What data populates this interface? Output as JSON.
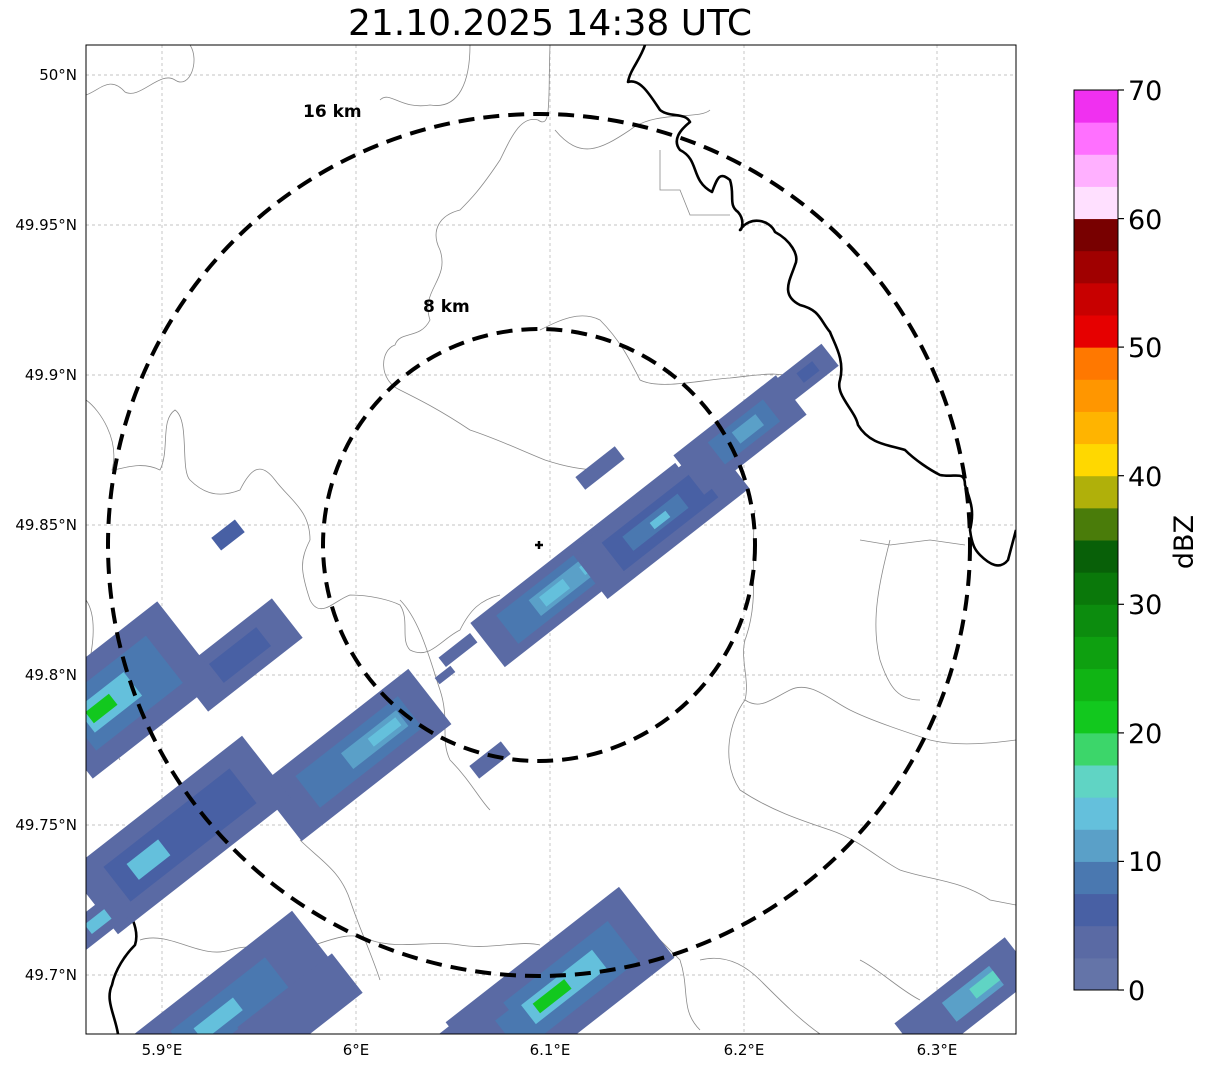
{
  "title": "21.10.2025 14:38 UTC",
  "x_ticks": [
    "5.9°E",
    "6°E",
    "6.1°E",
    "6.2°E",
    "6.3°E"
  ],
  "y_ticks": [
    "50°N",
    "49.95°N",
    "49.9°N",
    "49.85°N",
    "49.8°N",
    "49.75°N",
    "49.7°N"
  ],
  "rings": [
    {
      "label": "16 km",
      "radius_km": 16
    },
    {
      "label": "8 km",
      "radius_km": 8
    }
  ],
  "radar_site": {
    "lon": 6.095,
    "lat": 49.843
  },
  "colorbar": {
    "label": "dBZ",
    "ticks": [
      "0",
      "10",
      "20",
      "30",
      "40",
      "50",
      "60",
      "70"
    ],
    "min": 0,
    "max": 70,
    "step": 2.5,
    "colors": [
      "#6474a8",
      "#5a6aa4",
      "#4860a4",
      "#4a78b0",
      "#5aa0c8",
      "#64c0dc",
      "#60d4c4",
      "#3cd66a",
      "#12c81e",
      "#10b414",
      "#0ea010",
      "#0c8c0e",
      "#0a780a",
      "#086008",
      "#4a7c0a",
      "#b0b00a",
      "#ffd800",
      "#ffb400",
      "#ff9600",
      "#ff7800",
      "#e60000",
      "#c80000",
      "#a00000",
      "#780000",
      "#ffe0ff",
      "#ffb0ff",
      "#ff70ff",
      "#f030f0"
    ]
  }
}
